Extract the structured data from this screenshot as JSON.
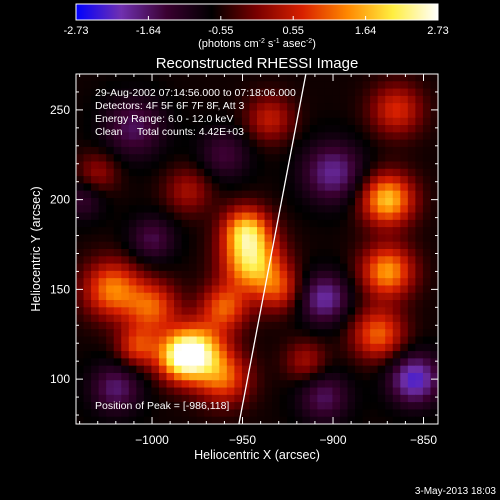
{
  "chart_data": {
    "type": "heatmap",
    "title": "Reconstructed RHESSI Image",
    "xlabel": "Heliocentric X (arcsec)",
    "ylabel": "Heliocentric Y (arcsec)",
    "xlim": [
      -1042,
      -842
    ],
    "ylim": [
      75,
      270
    ],
    "x_ticks": [
      -1000,
      -950,
      -900,
      -850
    ],
    "y_ticks": [
      100,
      150,
      200,
      250
    ],
    "colorbar": {
      "min": -2.73,
      "max": 2.73,
      "ticks": [
        "-2.73",
        "-1.64",
        "-0.55",
        "0.55",
        "1.64",
        "2.73"
      ],
      "unit_main": "(photons cm",
      "unit_sup1": "-2",
      "unit_mid": " s",
      "unit_sup2": "-1",
      "unit_end": " asec",
      "unit_sup3": "-2",
      "unit_close": ")",
      "colors": [
        "#0000ff",
        "#7030b0",
        "#3a0030",
        "#000000",
        "#7a0000",
        "#d82000",
        "#ff8800",
        "#ffee40",
        "#ffffff"
      ]
    },
    "annotations": [
      "29-Aug-2002 07:14:56.000 to 07:18:06.000",
      "Detectors: 4F 5F 6F 7F 8F, Att 3",
      "Energy Range: 6.0 - 12.0 keV",
      "Clean     Total counts: 4.42E+03"
    ],
    "peak_label": "Position of Peak = [-986,118]",
    "limb_x_at_ymin": -952,
    "limb_x_at_ymax": -915,
    "sources": [
      {
        "x": -1022,
        "y": 150,
        "amp": 1.9,
        "sigma": 11
      },
      {
        "x": -1000,
        "y": 140,
        "amp": 1.6,
        "sigma": 10
      },
      {
        "x": -975,
        "y": 115,
        "amp": 2.6,
        "sigma": 11
      },
      {
        "x": -985,
        "y": 112,
        "amp": 2.0,
        "sigma": 9
      },
      {
        "x": -1008,
        "y": 118,
        "amp": 1.4,
        "sigma": 8
      },
      {
        "x": -960,
        "y": 140,
        "amp": 1.6,
        "sigma": 9
      },
      {
        "x": -945,
        "y": 165,
        "amp": 2.5,
        "sigma": 11
      },
      {
        "x": -948,
        "y": 183,
        "amp": 2.2,
        "sigma": 9
      },
      {
        "x": -930,
        "y": 150,
        "amp": 1.3,
        "sigma": 9
      },
      {
        "x": -960,
        "y": 100,
        "amp": 1.5,
        "sigma": 10
      },
      {
        "x": -870,
        "y": 200,
        "amp": 2.4,
        "sigma": 10
      },
      {
        "x": -870,
        "y": 160,
        "amp": 2.1,
        "sigma": 10
      },
      {
        "x": -875,
        "y": 125,
        "amp": 1.7,
        "sigma": 10
      },
      {
        "x": -865,
        "y": 250,
        "amp": 1.3,
        "sigma": 10
      },
      {
        "x": -935,
        "y": 245,
        "amp": 1.1,
        "sigma": 9
      },
      {
        "x": -980,
        "y": 205,
        "amp": 0.9,
        "sigma": 9
      },
      {
        "x": -1030,
        "y": 215,
        "amp": 0.8,
        "sigma": 8
      },
      {
        "x": -915,
        "y": 110,
        "amp": 0.9,
        "sigma": 8
      },
      {
        "x": -1020,
        "y": 95,
        "amp": -1.1,
        "sigma": 10
      },
      {
        "x": -900,
        "y": 215,
        "amp": -1.3,
        "sigma": 12
      },
      {
        "x": -1010,
        "y": 240,
        "amp": -1.0,
        "sigma": 12
      },
      {
        "x": -905,
        "y": 145,
        "amp": -1.4,
        "sigma": 10
      },
      {
        "x": -855,
        "y": 100,
        "amp": -1.7,
        "sigma": 10
      },
      {
        "x": -1000,
        "y": 178,
        "amp": -0.9,
        "sigma": 9
      },
      {
        "x": -905,
        "y": 90,
        "amp": -1.0,
        "sigma": 10
      },
      {
        "x": -960,
        "y": 225,
        "amp": -0.8,
        "sigma": 10
      },
      {
        "x": -1038,
        "y": 200,
        "amp": -0.7,
        "sigma": 8
      }
    ],
    "background_level": -0.6
  },
  "footer": {
    "timestamp": "3-May-2013 18:03"
  }
}
